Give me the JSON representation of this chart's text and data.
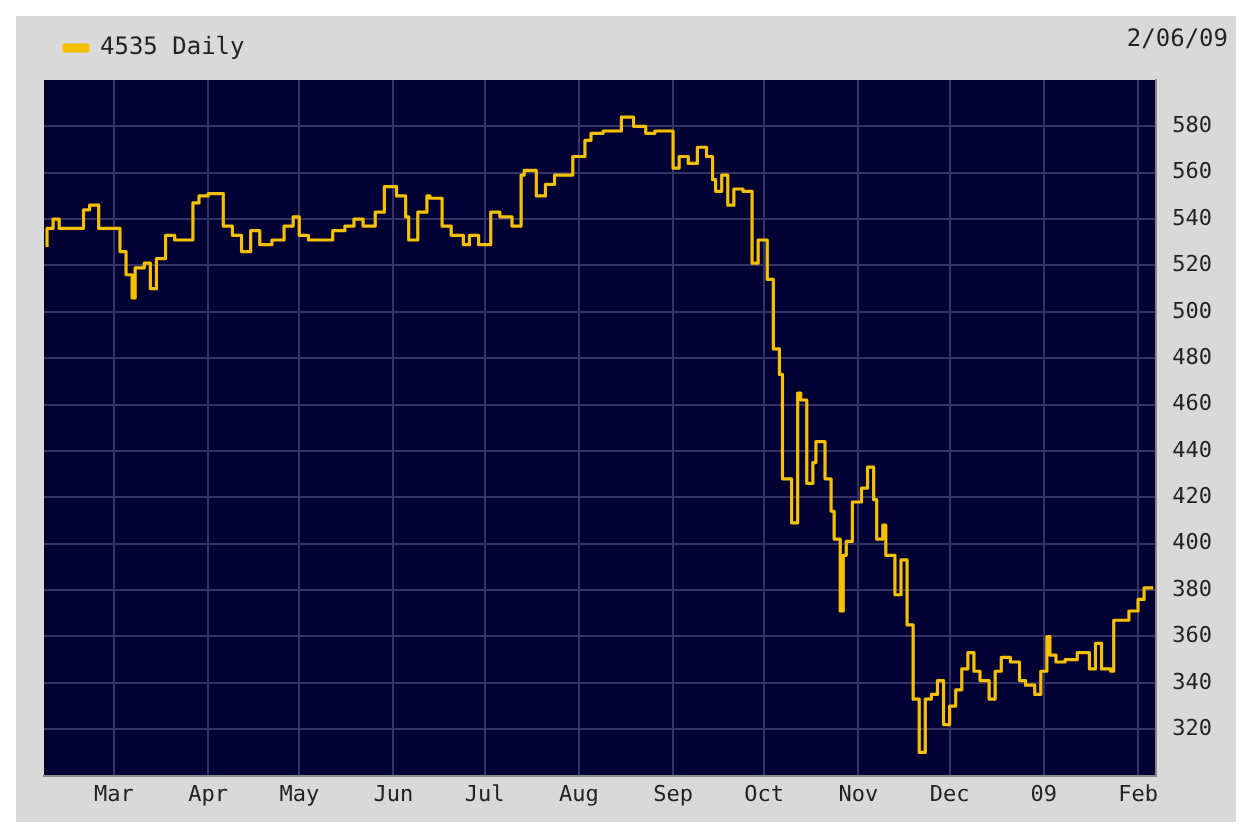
{
  "chart_data": {
    "type": "step",
    "annotations": [
      "2/06/09"
    ],
    "legend": "top left",
    "grid": true,
    "xlim": [
      "2008-02-07",
      "2009-02-07"
    ],
    "ylim": [
      300,
      600
    ],
    "xticks": [
      {
        "value": "2008-03-01",
        "label": "Mar"
      },
      {
        "value": "2008-04-01",
        "label": "Apr"
      },
      {
        "value": "2008-05-01",
        "label": "May"
      },
      {
        "value": "2008-06-01",
        "label": "Jun"
      },
      {
        "value": "2008-07-01",
        "label": "Jul"
      },
      {
        "value": "2008-08-01",
        "label": "Aug"
      },
      {
        "value": "2008-09-01",
        "label": "Sep"
      },
      {
        "value": "2008-10-01",
        "label": "Oct"
      },
      {
        "value": "2008-11-01",
        "label": "Nov"
      },
      {
        "value": "2008-12-01",
        "label": "Dec"
      },
      {
        "value": "2009-01-01",
        "label": "09"
      },
      {
        "value": "2009-02-01",
        "label": "Feb"
      }
    ],
    "yticks": [
      320,
      340,
      360,
      380,
      400,
      420,
      440,
      460,
      480,
      500,
      520,
      540,
      560,
      580
    ],
    "x": [
      "2008-02-08",
      "2008-02-10",
      "2008-02-12",
      "2008-02-15",
      "2008-02-20",
      "2008-02-22",
      "2008-02-25",
      "2008-02-27",
      "2008-03-03",
      "2008-03-05",
      "2008-03-07",
      "2008-03-08",
      "2008-03-11",
      "2008-03-13",
      "2008-03-15",
      "2008-03-18",
      "2008-03-21",
      "2008-03-24",
      "2008-03-27",
      "2008-03-29",
      "2008-04-01",
      "2008-04-06",
      "2008-04-09",
      "2008-04-12",
      "2008-04-15",
      "2008-04-18",
      "2008-04-22",
      "2008-04-26",
      "2008-04-29",
      "2008-05-01",
      "2008-05-04",
      "2008-05-08",
      "2008-05-12",
      "2008-05-16",
      "2008-05-19",
      "2008-05-22",
      "2008-05-26",
      "2008-05-29",
      "2008-06-02",
      "2008-06-05",
      "2008-06-06",
      "2008-06-09",
      "2008-06-12",
      "2008-06-13",
      "2008-06-17",
      "2008-06-20",
      "2008-06-24",
      "2008-06-26",
      "2008-06-29",
      "2008-07-03",
      "2008-07-06",
      "2008-07-10",
      "2008-07-13",
      "2008-07-14",
      "2008-07-18",
      "2008-07-21",
      "2008-07-24",
      "2008-07-30",
      "2008-08-03",
      "2008-08-05",
      "2008-08-09",
      "2008-08-15",
      "2008-08-19",
      "2008-08-23",
      "2008-08-26",
      "2008-09-01",
      "2008-09-03",
      "2008-09-06",
      "2008-09-09",
      "2008-09-12",
      "2008-09-14",
      "2008-09-15",
      "2008-09-17",
      "2008-09-19",
      "2008-09-21",
      "2008-09-24",
      "2008-09-27",
      "2008-09-29",
      "2008-10-02",
      "2008-10-04",
      "2008-10-06",
      "2008-10-07",
      "2008-10-10",
      "2008-10-12",
      "2008-10-13",
      "2008-10-15",
      "2008-10-17",
      "2008-10-18",
      "2008-10-21",
      "2008-10-23",
      "2008-10-24",
      "2008-10-26",
      "2008-10-27",
      "2008-10-28",
      "2008-10-30",
      "2008-11-02",
      "2008-11-04",
      "2008-11-06",
      "2008-11-07",
      "2008-11-09",
      "2008-11-10",
      "2008-11-13",
      "2008-11-15",
      "2008-11-17",
      "2008-11-19",
      "2008-11-21",
      "2008-11-23",
      "2008-11-25",
      "2008-11-27",
      "2008-11-29",
      "2008-12-01",
      "2008-12-03",
      "2008-12-05",
      "2008-12-07",
      "2008-12-09",
      "2008-12-11",
      "2008-12-14",
      "2008-12-16",
      "2008-12-18",
      "2008-12-21",
      "2008-12-24",
      "2008-12-26",
      "2008-12-29",
      "2008-12-31",
      "2009-01-02",
      "2009-01-03",
      "2009-01-05",
      "2009-01-08",
      "2009-01-12",
      "2009-01-16",
      "2009-01-18",
      "2009-01-20",
      "2009-01-23",
      "2009-01-24",
      "2009-01-25",
      "2009-01-29",
      "2009-02-01",
      "2009-02-03",
      "2009-02-06"
    ],
    "series": [
      {
        "name": "4535 Daily",
        "color": "#f5c000",
        "values": [
          528,
          536,
          540,
          536,
          536,
          544,
          546,
          536,
          536,
          526,
          516,
          506,
          519,
          521,
          510,
          523,
          533,
          531,
          531,
          547,
          550,
          551,
          537,
          533,
          526,
          535,
          529,
          531,
          537,
          541,
          533,
          531,
          531,
          535,
          537,
          540,
          537,
          543,
          554,
          550,
          541,
          531,
          543,
          550,
          549,
          537,
          533,
          529,
          533,
          529,
          543,
          541,
          537,
          559,
          561,
          550,
          555,
          559,
          567,
          574,
          577,
          578,
          584,
          580,
          577,
          578,
          562,
          567,
          564,
          571,
          567,
          557,
          552,
          559,
          546,
          553,
          552,
          521,
          531,
          514,
          484,
          473,
          428,
          409,
          465,
          462,
          426,
          435,
          444,
          428,
          414,
          402,
          371,
          395,
          401,
          418,
          424,
          433,
          419,
          402,
          408,
          395,
          378,
          393,
          365,
          333,
          310,
          333,
          335,
          341,
          322,
          330,
          337,
          346,
          353,
          345,
          341,
          333,
          345,
          351,
          349,
          341,
          339,
          335,
          345,
          360,
          352,
          349,
          350,
          353,
          346,
          357,
          346,
          345,
          367,
          367,
          371,
          376,
          381
        ]
      }
    ]
  }
}
